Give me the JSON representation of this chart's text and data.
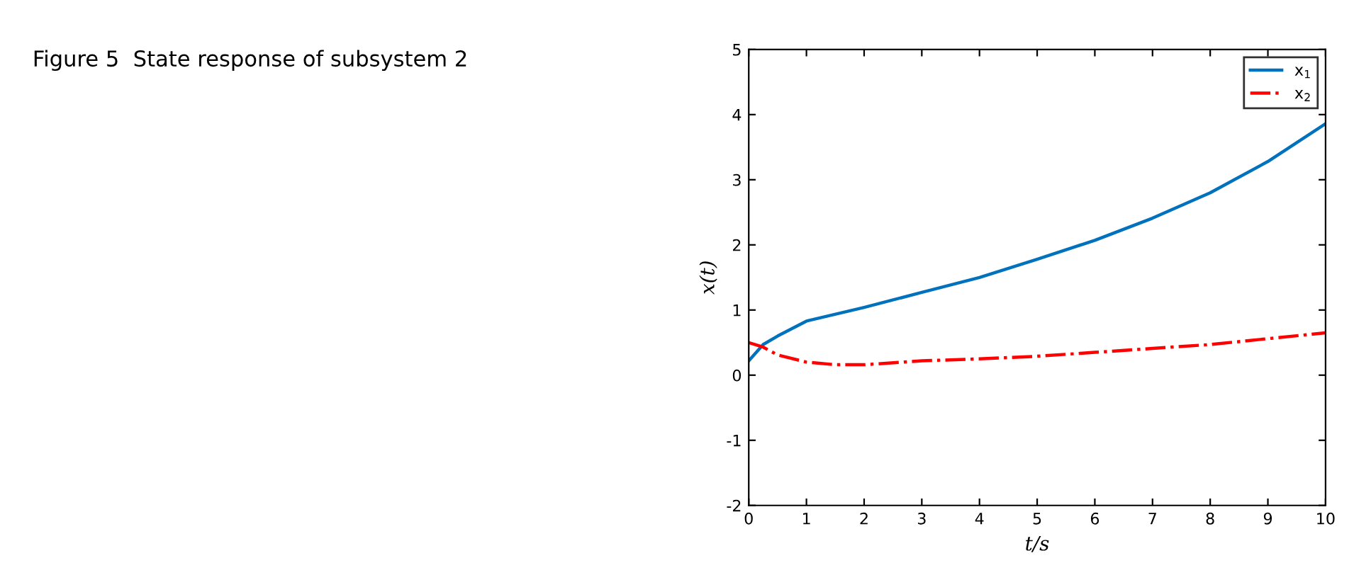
{
  "chart_data": {
    "type": "line",
    "title": "Figure 5  State response of subsystem 2",
    "xlabel": "t/s",
    "ylabel": "x(t)",
    "xlim": [
      0,
      10
    ],
    "xticks": [
      0,
      1,
      2,
      3,
      4,
      5,
      6,
      7,
      8,
      9,
      10
    ],
    "ylim": [
      -2,
      5
    ],
    "yticks": [
      -2,
      -1,
      0,
      1,
      2,
      3,
      4,
      5
    ],
    "legend": "top right",
    "grid": false,
    "series": [
      {
        "name": "x$_{1}$",
        "color": "#0072bd",
        "line_style": "solid",
        "x": [
          0,
          0.25,
          0.5,
          1,
          2,
          3,
          4,
          5,
          6,
          7,
          8,
          9,
          10
        ],
        "values": [
          0.22,
          0.47,
          0.6,
          0.83,
          1.04,
          1.27,
          1.5,
          1.78,
          2.07,
          2.41,
          2.8,
          3.28,
          3.86
        ]
      },
      {
        "name": "x$_{2}$",
        "color": "#ff0000",
        "line_style": "dashdot",
        "x": [
          0,
          0.25,
          0.5,
          1,
          1.5,
          2,
          3,
          4,
          5,
          6,
          7,
          8,
          9,
          10
        ],
        "values": [
          0.5,
          0.43,
          0.31,
          0.2,
          0.16,
          0.16,
          0.22,
          0.25,
          0.29,
          0.35,
          0.41,
          0.47,
          0.56,
          0.65
        ]
      }
    ]
  }
}
